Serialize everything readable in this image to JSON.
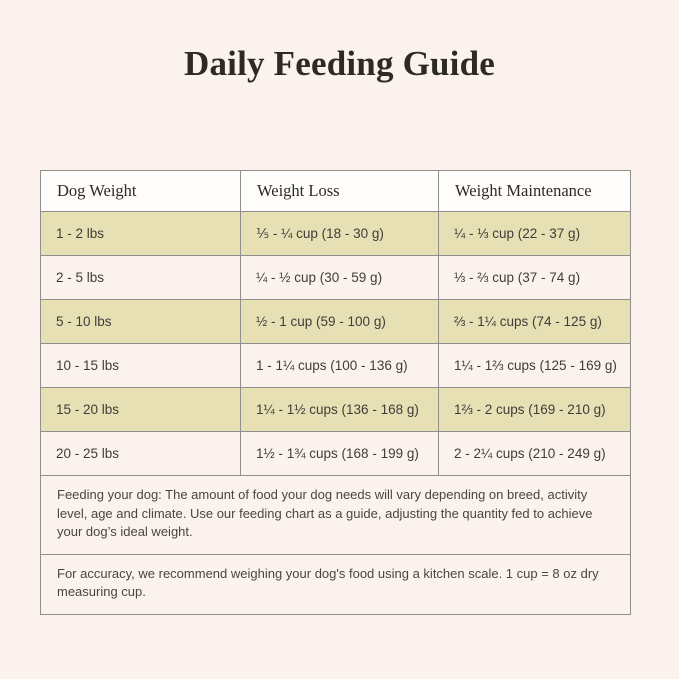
{
  "page": {
    "background": "#FBF2ED"
  },
  "title": "Daily Feeding Guide",
  "colors": {
    "row_khaki": "#E7E0B4",
    "row_pink": "#FBF2ED",
    "header_bg": "#FEFDFB",
    "border": "#8F8F8B",
    "title_text": "#2D2A25"
  },
  "table": {
    "headers": [
      "Dog Weight",
      "Weight Loss",
      "Weight Maintenance"
    ],
    "rows": [
      [
        "1 - 2 lbs",
        "⅕ - ¼ cup (18 - 30 g)",
        "¼ - ⅓ cup (22 - 37 g)"
      ],
      [
        "2 - 5 lbs",
        "¼ - ½ cup (30 - 59 g)",
        "⅓ - ⅔ cup (37 - 74 g)"
      ],
      [
        "5 - 10 lbs",
        "½ - 1 cup (59 - 100 g)",
        "⅔ - 1¼ cups (74 - 125 g)"
      ],
      [
        "10 - 15 lbs",
        "1 - 1¼ cups (100 - 136 g)",
        "1¼ - 1⅔ cups (125 - 169 g)"
      ],
      [
        "15 - 20 lbs",
        "1¼ - 1½ cups (136 - 168 g)",
        "1⅔ - 2 cups (169 - 210 g)"
      ],
      [
        "20 - 25 lbs",
        "1½ - 1¾ cups (168 - 199 g)",
        "2 - 2¼ cups (210 - 249 g)"
      ]
    ]
  },
  "notes": [
    "Feeding your dog: The amount of food your dog needs will vary depending on breed, activity level, age and climate. Use our feeding chart as a guide, adjusting the quantity fed to achieve your dog’s ideal weight.",
    "For accuracy, we recommend weighing your dog's food using a kitchen scale. 1 cup = 8 oz dry measuring cup."
  ]
}
